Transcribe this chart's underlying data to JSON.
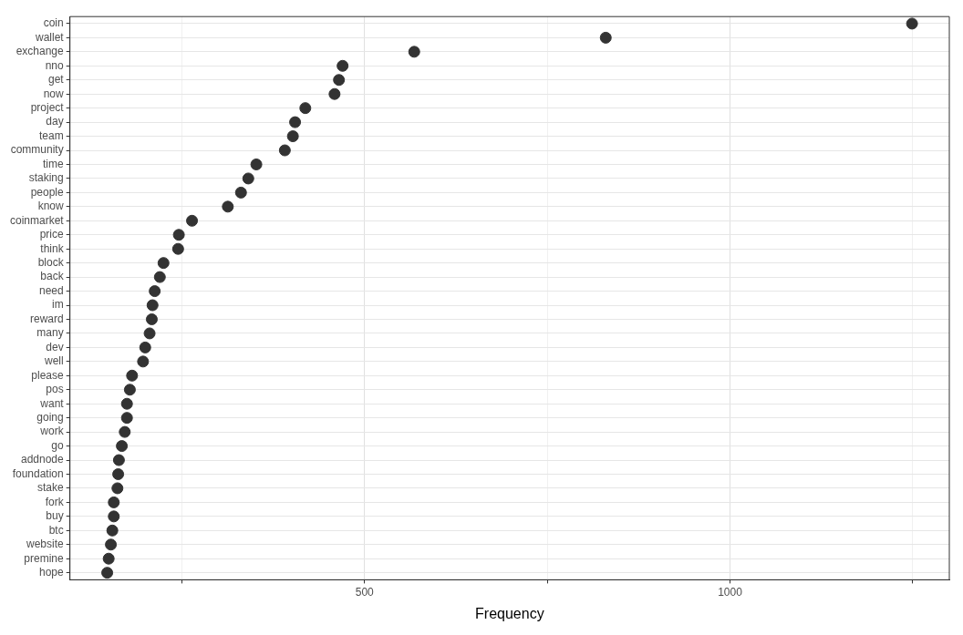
{
  "chart_data": {
    "type": "scatter",
    "xlabel": "Frequency",
    "categories": [
      "coin",
      "wallet",
      "exchange",
      "nno",
      "get",
      "now",
      "project",
      "day",
      "team",
      "community",
      "time",
      "staking",
      "people",
      "know",
      "coinmarket",
      "price",
      "think",
      "block",
      "back",
      "need",
      "im",
      "reward",
      "many",
      "dev",
      "well",
      "please",
      "pos",
      "want",
      "going",
      "work",
      "go",
      "addnode",
      "foundation",
      "stake",
      "fork",
      "buy",
      "btc",
      "website",
      "premine",
      "hope"
    ],
    "values": [
      1249,
      830,
      568,
      470,
      465,
      459,
      419,
      405,
      402,
      391,
      352,
      341,
      331,
      313,
      264,
      246,
      245,
      225,
      220,
      213,
      210,
      209,
      206,
      200,
      197,
      182,
      179,
      175,
      175,
      172,
      168,
      164,
      163,
      162,
      157,
      157,
      155,
      153,
      150,
      148
    ],
    "color": "#333333",
    "xlim": [
      97,
      1300
    ],
    "xticks": [
      {
        "value": 250,
        "label": null
      },
      500,
      {
        "value": 750,
        "label": null
      },
      1000,
      {
        "value": 1250,
        "label": null
      }
    ],
    "orientation": "horizontal",
    "grid": true,
    "marker": "circle",
    "legend": false
  }
}
